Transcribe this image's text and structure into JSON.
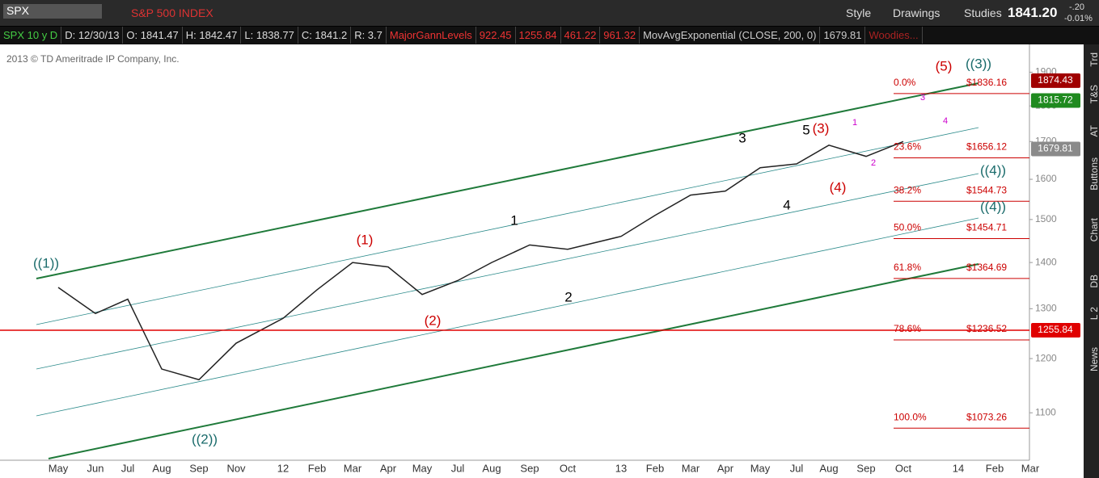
{
  "toolbar": {
    "symbol": "SPX",
    "description": "S&P 500 INDEX",
    "style": "Style",
    "drawings": "Drawings",
    "studies": "Studies",
    "last": "1841.20",
    "change": "-.20",
    "change_pct": "-0.01%"
  },
  "study_bar": {
    "items": [
      "SPX 10 y D",
      "D: 12/30/13",
      "O: 1841.47",
      "H: 1842.47",
      "L: 1838.77",
      "C: 1841.2",
      "R: 3.7"
    ],
    "gann": [
      "MajorGannLevels",
      "922.45",
      "1255.84",
      "461.22",
      "961.32"
    ],
    "mov_avg": [
      "MovAvgExponential (CLOSE, 200, 0)",
      "1679.81"
    ],
    "woodies": "Woodies..."
  },
  "side_tabs": [
    "Trd",
    "T&S",
    "AT",
    "Buttons",
    "Chart",
    "DB",
    "L 2",
    "News"
  ],
  "chart_data": {
    "type": "line",
    "copyright": "2013 © TD Ameritrade IP Company, Inc.",
    "categories": [
      "May",
      "Jun",
      "Jul",
      "Aug",
      "Sep",
      "Nov",
      "12",
      "Feb",
      "Mar",
      "Apr",
      "May",
      "Jul",
      "Aug",
      "Sep",
      "Oct",
      "13",
      "Feb",
      "Mar",
      "Apr",
      "May",
      "Jul",
      "Aug",
      "Sep",
      "Oct",
      "14",
      "Feb",
      "Mar"
    ],
    "values": [
      1345,
      1290,
      1320,
      1180,
      1160,
      1230,
      1280,
      1340,
      1400,
      1390,
      1330,
      1360,
      1400,
      1440,
      1430,
      1460,
      1510,
      1560,
      1570,
      1630,
      1640,
      1690,
      1660,
      1700,
      null,
      null,
      null
    ],
    "color": "#222222",
    "log_scale": true,
    "ylim": [
      1022,
      1979
    ],
    "yticks": [
      1100,
      1200,
      1300,
      1400,
      1500,
      1600,
      1700,
      1800,
      1900
    ],
    "price_boxes": [
      {
        "value": 1874.43,
        "color": "#a00000"
      },
      {
        "value": 1815.72,
        "color": "#1f8a1f"
      },
      {
        "value": 1679.81,
        "color": "#8a8a8a"
      },
      {
        "value": 1255.84,
        "color": "#e00000"
      }
    ],
    "fib_levels": [
      {
        "level": "0.0%",
        "price": 1836.16,
        "price_label": "$1836.16"
      },
      {
        "level": "23.6%",
        "price": 1656.12,
        "price_label": "$1656.12"
      },
      {
        "level": "38.2%",
        "price": 1544.73,
        "price_label": "$1544.73"
      },
      {
        "level": "50.0%",
        "price": 1454.71,
        "price_label": "$1454.71"
      },
      {
        "level": "61.8%",
        "price": 1364.69,
        "price_label": "$1364.69"
      },
      {
        "level": "78.6%",
        "price": 1236.52,
        "price_label": "$1236.52"
      },
      {
        "level": "100.0%",
        "price": 1073.26,
        "price_label": "$1073.26"
      }
    ],
    "annotations": [
      {
        "text": "((1))",
        "color": "#1a6b6b"
      },
      {
        "text": "((2))",
        "color": "#1a6b6b"
      },
      {
        "text": "(1)",
        "color": "#cc0000"
      },
      {
        "text": "(2)",
        "color": "#cc0000"
      },
      {
        "text": "1",
        "color": "#000000"
      },
      {
        "text": "2",
        "color": "#000000"
      },
      {
        "text": "3",
        "color": "#000000"
      },
      {
        "text": "4",
        "color": "#000000"
      },
      {
        "text": "5",
        "color": "#000000"
      },
      {
        "text": "(3)",
        "color": "#cc0000"
      },
      {
        "text": "(4)",
        "color": "#cc0000"
      },
      {
        "text": "(5)",
        "color": "#cc0000"
      },
      {
        "text": "((3))",
        "color": "#1a6b6b"
      },
      {
        "text": "((4))",
        "color": "#1a6b6b"
      },
      {
        "text": "((4))",
        "color": "#1a6b6b"
      },
      {
        "text": "1",
        "color": "#cc00cc"
      },
      {
        "text": "2",
        "color": "#cc00cc"
      },
      {
        "text": "3",
        "color": "#cc00cc"
      },
      {
        "text": "4",
        "color": "#cc00cc"
      }
    ]
  }
}
